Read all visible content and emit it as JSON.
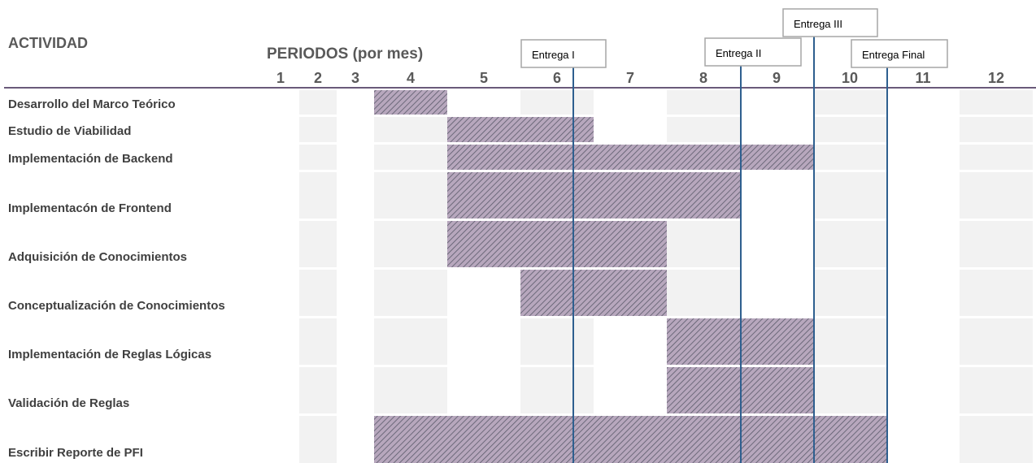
{
  "chart_data": {
    "type": "gantt",
    "header": {
      "activity": "ACTIVIDAD",
      "periods": "PERIODOS (por mes)"
    },
    "periods": [
      "1",
      "2",
      "3",
      "4",
      "5",
      "6",
      "7",
      "8",
      "9",
      "10",
      "11",
      "12"
    ],
    "tasks": [
      {
        "name": "Desarrollo del Marco Teórico",
        "start": 4,
        "end": 4
      },
      {
        "name": "Estudio de Viabilidad",
        "start": 5,
        "end": 6
      },
      {
        "name": "Implementación de Backend",
        "start": 5,
        "end": 9
      },
      {
        "name": "Implementacón de Frontend",
        "start": 5,
        "end": 8
      },
      {
        "name": "Adquisición de Conocimientos",
        "start": 5,
        "end": 7
      },
      {
        "name": "Conceptualización de Conocimientos",
        "start": 6,
        "end": 7
      },
      {
        "name": "Implementación de Reglas Lógicas",
        "start": 8,
        "end": 9
      },
      {
        "name": "Validación de Reglas",
        "start": 8,
        "end": 9
      },
      {
        "name": "Escribir Reporte de PFI",
        "start": 4,
        "end": 10
      }
    ],
    "milestones": [
      {
        "label": "Entrega I",
        "period": 6
      },
      {
        "label": "Entrega II",
        "period": 8
      },
      {
        "label": "Entrega III",
        "period": 9
      },
      {
        "label": "Entrega Final",
        "period": 10
      }
    ],
    "colors": {
      "shaded_column": "#f2f2f2",
      "bar_fill": "#b7a7bd",
      "bar_hatch": "#5a5a6a",
      "milestone_line": "#2e5f8f",
      "header_rule": "#6a5a7a",
      "text": "#404040"
    }
  }
}
